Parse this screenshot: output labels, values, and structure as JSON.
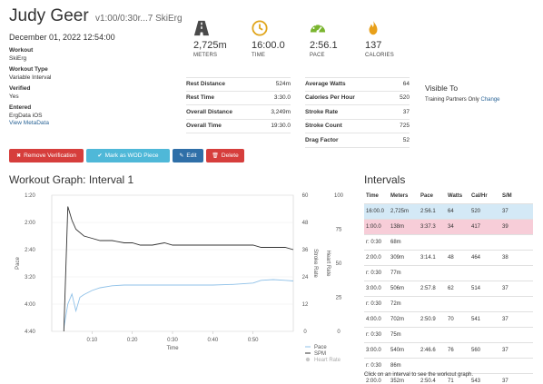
{
  "header": {
    "name": "Judy Geer",
    "subtitle": "v1:00/0:30r...7 SkiErg"
  },
  "date": "December 01, 2022 12:54:00",
  "meta": [
    {
      "label": "Workout",
      "value": "SkiErg"
    },
    {
      "label": "Workout Type",
      "value": "Variable Interval"
    },
    {
      "label": "Verified",
      "value": "Yes"
    },
    {
      "label": "Entered",
      "value": "ErgData iOS"
    }
  ],
  "view_metadata": "View MetaData",
  "stats": [
    {
      "icon": "road-icon",
      "value": "2,725m",
      "caption": "METERS"
    },
    {
      "icon": "clock-icon",
      "value": "16:00.0",
      "caption": "TIME"
    },
    {
      "icon": "speedometer-icon",
      "value": "2:56.1",
      "caption": "PACE"
    },
    {
      "icon": "flame-icon",
      "value": "137",
      "caption": "CALORIES"
    }
  ],
  "details_left": [
    {
      "k": "Rest Distance",
      "v": "524m"
    },
    {
      "k": "Rest Time",
      "v": "3:30.0"
    },
    {
      "k": "Overall Distance",
      "v": "3,249m"
    },
    {
      "k": "Overall Time",
      "v": "19:30.0"
    }
  ],
  "details_right": [
    {
      "k": "Average Watts",
      "v": "64"
    },
    {
      "k": "Calories Per Hour",
      "v": "520"
    },
    {
      "k": "Stroke Rate",
      "v": "37"
    },
    {
      "k": "Stroke Count",
      "v": "725"
    },
    {
      "k": "Drag Factor",
      "v": "52"
    }
  ],
  "visibility": {
    "title": "Visible To",
    "value": "Training Partners Only",
    "change": "Change"
  },
  "buttons": {
    "remove_verification": "Remove Verification",
    "mark_wod": "Mark as WOD Piece",
    "edit": "Edit",
    "delete": "Delete"
  },
  "graph_title": "Workout Graph: Interval 1",
  "chart_data": {
    "type": "line",
    "title": "Workout Graph: Interval 1",
    "xlabel": "Time",
    "ylabel": "Pace",
    "y2label": "Stroke Rate",
    "y3label": "Heart Rate",
    "x_ticks": [
      "0:10",
      "0:20",
      "0:30",
      "0:40",
      "0:50"
    ],
    "x_range_seconds": [
      0,
      60
    ],
    "y_ticks": [
      "1:20",
      "2:00",
      "2:40",
      "3:20",
      "4:00",
      "4:40"
    ],
    "y_range_seconds": [
      80,
      280
    ],
    "y_reversed": true,
    "y2_ticks": [
      "60",
      "48",
      "36",
      "24",
      "12",
      "0"
    ],
    "y2_range": [
      0,
      60
    ],
    "y3_ticks": [
      "100",
      "75",
      "50",
      "25",
      "0"
    ],
    "y3_range": [
      0,
      100
    ],
    "legend": [
      "Pace",
      "SPM",
      "Heart Rate"
    ],
    "legend_position": "bottom-right",
    "series": [
      {
        "name": "Pace",
        "color": "#8fc1e8",
        "axis": "y",
        "x": [
          3,
          4,
          5,
          6,
          7,
          8,
          10,
          12,
          15,
          18,
          20,
          25,
          30,
          35,
          40,
          45,
          50,
          52,
          55,
          58,
          60
        ],
        "y": [
          275,
          240,
          225,
          250,
          230,
          226,
          220,
          216,
          213,
          212,
          212,
          212,
          212,
          212,
          212,
          211,
          209,
          205,
          204,
          205,
          206
        ]
      },
      {
        "name": "SPM",
        "color": "#333333",
        "axis": "y2",
        "x": [
          3,
          4,
          5,
          6,
          8,
          10,
          12,
          15,
          18,
          20,
          22,
          25,
          28,
          30,
          32,
          35,
          38,
          40,
          42,
          45,
          48,
          50,
          52,
          55,
          58,
          60
        ],
        "y": [
          0,
          55,
          49,
          45,
          42,
          41,
          40,
          40,
          39,
          39,
          38,
          38,
          39,
          38,
          38,
          38,
          38,
          38,
          38,
          38,
          38,
          38,
          37,
          37,
          37,
          36
        ]
      }
    ]
  },
  "intervals_title": "Intervals",
  "interval_headers": [
    "Time",
    "Meters",
    "Pace",
    "Watts",
    "Cal/Hr",
    "S/M"
  ],
  "intervals": [
    {
      "time": "16:00.0",
      "meters": "2,725m",
      "pace": "2:56.1",
      "watts": "64",
      "calhr": "520",
      "sm": "37",
      "hl": "blue"
    },
    {
      "time": "1:00.0",
      "meters": "138m",
      "pace": "3:37.3",
      "watts": "34",
      "calhr": "417",
      "sm": "39",
      "hl": "pink"
    },
    {
      "time": "r: 0:30",
      "meters": "68m",
      "pace": "",
      "watts": "",
      "calhr": "",
      "sm": "",
      "hl": ""
    },
    {
      "time": "2:00.0",
      "meters": "309m",
      "pace": "3:14.1",
      "watts": "48",
      "calhr": "464",
      "sm": "38",
      "hl": ""
    },
    {
      "time": "r: 0:30",
      "meters": "77m",
      "pace": "",
      "watts": "",
      "calhr": "",
      "sm": "",
      "hl": ""
    },
    {
      "time": "3:00.0",
      "meters": "506m",
      "pace": "2:57.8",
      "watts": "62",
      "calhr": "514",
      "sm": "37",
      "hl": ""
    },
    {
      "time": "r: 0:30",
      "meters": "72m",
      "pace": "",
      "watts": "",
      "calhr": "",
      "sm": "",
      "hl": ""
    },
    {
      "time": "4:00.0",
      "meters": "702m",
      "pace": "2:50.9",
      "watts": "70",
      "calhr": "541",
      "sm": "37",
      "hl": ""
    },
    {
      "time": "r: 0:30",
      "meters": "75m",
      "pace": "",
      "watts": "",
      "calhr": "",
      "sm": "",
      "hl": ""
    },
    {
      "time": "3:00.0",
      "meters": "540m",
      "pace": "2:46.6",
      "watts": "76",
      "calhr": "560",
      "sm": "37",
      "hl": ""
    },
    {
      "time": "r: 0:30",
      "meters": "86m",
      "pace": "",
      "watts": "",
      "calhr": "",
      "sm": "",
      "hl": ""
    },
    {
      "time": "2:00.0",
      "meters": "352m",
      "pace": "2:50.4",
      "watts": "71",
      "calhr": "543",
      "sm": "37",
      "hl": ""
    }
  ],
  "intervals_footer": "Click on an interval to see the workout graph."
}
